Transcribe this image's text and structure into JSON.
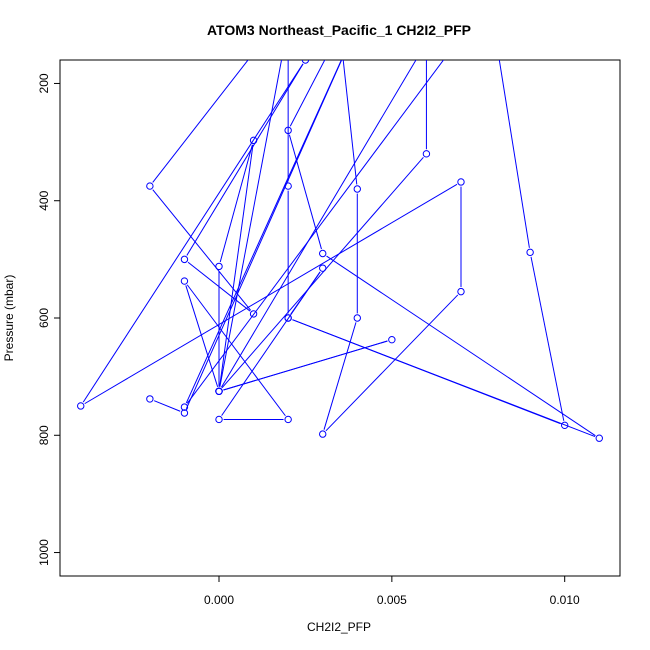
{
  "chart_data": {
    "type": "line",
    "title": "ATOM3 Northeast_Pacific_1 CH2I2_PFP",
    "xlabel": "CH2I2_PFP",
    "ylabel": "Pressure (mbar)",
    "xlim": [
      -0.0046,
      0.0116
    ],
    "ylim": [
      1040,
      160
    ],
    "x_reversed": false,
    "y_reversed": true,
    "x_ticks": [
      0.0,
      0.005,
      0.01
    ],
    "x_tick_labels": [
      "0.000",
      "0.005",
      "0.010"
    ],
    "y_ticks": [
      200,
      400,
      600,
      800,
      1000
    ],
    "y_tick_labels": [
      "200",
      "400",
      "600",
      "800",
      "1000"
    ],
    "grid": false,
    "legend": "none",
    "series": [
      {
        "color": "#0000ff",
        "marker": "open-circle",
        "points": [
          [
            0.0015,
            110
          ],
          [
            -0.002,
            375
          ],
          [
            0.001,
            593
          ],
          [
            -0.001,
            500
          ],
          [
            0.0025,
            160
          ],
          [
            -0.004,
            750
          ],
          [
            0.007,
            368
          ],
          [
            0.007,
            555
          ],
          [
            0.003,
            798
          ],
          [
            0.004,
            600
          ],
          [
            0.004,
            380
          ],
          [
            0.0035,
            110
          ],
          [
            0.002,
            280
          ],
          [
            0.003,
            490
          ],
          [
            0.011,
            805
          ],
          [
            0.002,
            600
          ],
          [
            0.002,
            375
          ],
          [
            0.002,
            100
          ],
          [
            0.0,
            725
          ],
          [
            0.006,
            320
          ],
          [
            0.006,
            130
          ],
          [
            0.0,
            725
          ],
          [
            0.005,
            637
          ],
          [
            0.0,
            725
          ],
          [
            0.0,
            512
          ],
          [
            0.001,
            297
          ],
          [
            0.0,
            725
          ],
          [
            -0.001,
            537
          ],
          [
            0.002,
            773
          ],
          [
            0.0,
            773
          ],
          [
            0.003,
            515
          ],
          [
            0.002,
            600
          ],
          [
            0.01,
            783
          ],
          [
            0.009,
            488
          ],
          [
            0.008,
            120
          ],
          [
            0.007,
            120
          ],
          [
            -0.001,
            752
          ],
          [
            0.004,
            100
          ],
          [
            -0.001,
            762
          ],
          [
            -0.002,
            738
          ]
        ]
      }
    ]
  }
}
